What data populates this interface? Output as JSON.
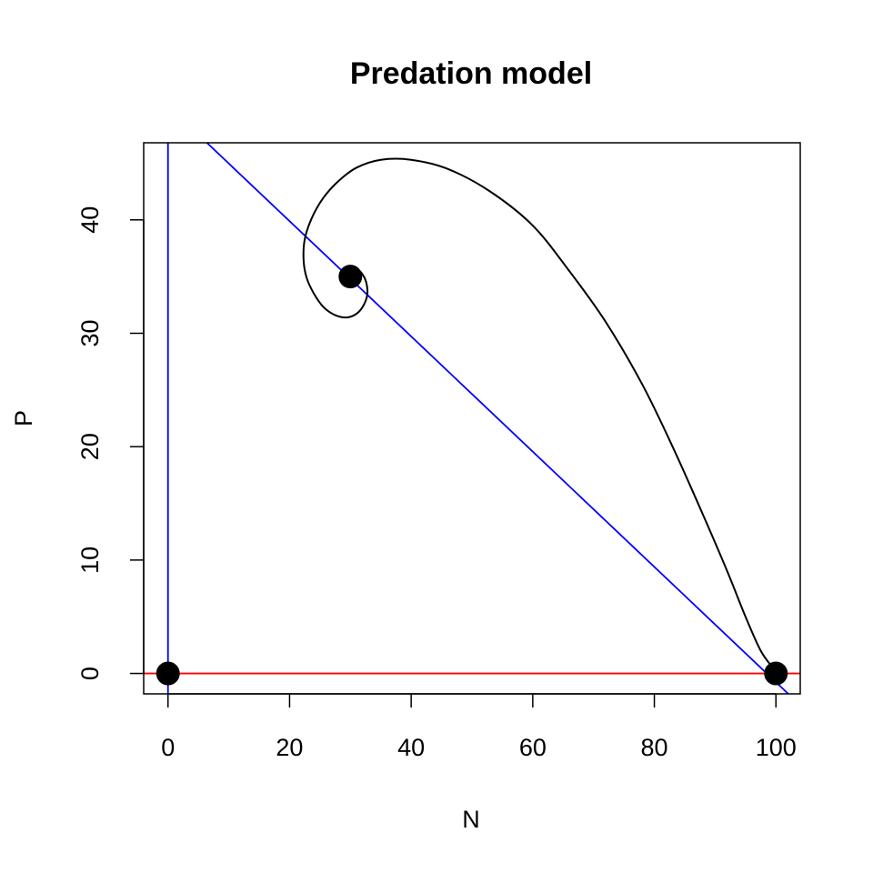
{
  "chart_data": {
    "type": "line",
    "title": "Predation model",
    "xlabel": "N",
    "ylabel": "P",
    "xlim": [
      -4,
      104
    ],
    "ylim": [
      -1.8,
      46.8
    ],
    "xticks": [
      0,
      20,
      40,
      60,
      80,
      100
    ],
    "yticks": [
      0,
      10,
      20,
      30,
      40
    ],
    "grid": false,
    "colors": {
      "prey_isocline": "#ff0000",
      "predator_isoclines": "#0000ff",
      "trajectory": "#000000",
      "equilibria": "#000000"
    },
    "isoclines": [
      {
        "color": "#0000ff",
        "points": [
          [
            0,
            -1.8
          ],
          [
            0,
            46.8
          ]
        ]
      },
      {
        "color": "#0000ff",
        "points": [
          [
            6.4,
            46.8
          ],
          [
            104,
            -2.8
          ]
        ]
      },
      {
        "color": "#ff0000",
        "points": [
          [
            -4,
            0
          ],
          [
            104,
            0
          ]
        ]
      }
    ],
    "trajectory": [
      [
        99.5,
        0.5
      ],
      [
        97.5,
        2
      ],
      [
        95,
        5
      ],
      [
        92,
        9
      ],
      [
        88,
        14
      ],
      [
        83,
        20
      ],
      [
        78,
        25.5
      ],
      [
        72,
        31
      ],
      [
        66,
        35.5
      ],
      [
        60,
        39.5
      ],
      [
        53,
        42.5
      ],
      [
        46,
        44.5
      ],
      [
        40,
        45.3
      ],
      [
        35,
        45.3
      ],
      [
        31,
        44.6
      ],
      [
        28,
        43.4
      ],
      [
        25.5,
        41.9
      ],
      [
        23.6,
        40.1
      ],
      [
        22.5,
        38.3
      ],
      [
        22.3,
        36.5
      ],
      [
        22.8,
        34.9
      ],
      [
        24,
        33.5
      ],
      [
        25.6,
        32.3
      ],
      [
        27.5,
        31.6
      ],
      [
        29.5,
        31.4
      ],
      [
        31.2,
        31.8
      ],
      [
        32.3,
        32.6
      ],
      [
        32.8,
        33.5
      ],
      [
        32.6,
        34.5
      ],
      [
        32,
        35.2
      ],
      [
        31.2,
        35.6
      ],
      [
        30.4,
        35.6
      ],
      [
        29.8,
        35.3
      ],
      [
        29.6,
        35
      ],
      [
        29.8,
        34.8
      ],
      [
        30.1,
        34.8
      ],
      [
        30.2,
        35
      ],
      [
        30,
        35.1
      ]
    ],
    "equilibria": [
      [
        0,
        0
      ],
      [
        30,
        35
      ],
      [
        100,
        0
      ]
    ]
  }
}
